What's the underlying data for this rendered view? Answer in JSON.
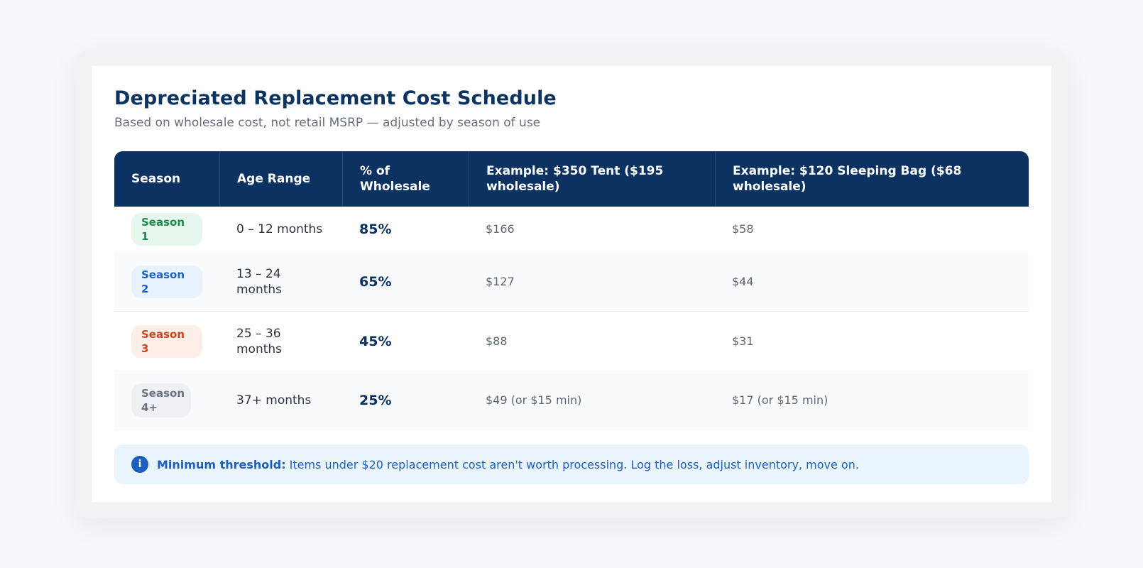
{
  "title": "Depreciated Replacement Cost Schedule",
  "subtitle": "Based on wholesale cost, not retail MSRP — adjusted by season of use",
  "table": {
    "headers": [
      "Season",
      "Age Range",
      "% of Wholesale",
      "Example: $350 Tent ($195 wholesale)",
      "Example: $120 Sleeping Bag ($68 wholesale)"
    ],
    "rows": [
      {
        "season": "Season 1",
        "age": "0 – 12 months",
        "pct": "85%",
        "tent": "$166",
        "bag": "$58",
        "badge_color": "#1c8a4c"
      },
      {
        "season": "Season 2",
        "age": "13 – 24 months",
        "pct": "65%",
        "tent": "$127",
        "bag": "$44",
        "badge_color": "#1d63c4"
      },
      {
        "season": "Season 3",
        "age": "25 – 36 months",
        "pct": "45%",
        "tent": "$88",
        "bag": "$31",
        "badge_color": "#c8461d"
      },
      {
        "season": "Season 4+",
        "age": "37+ months",
        "pct": "25%",
        "tent": "$49 (or $15 min)",
        "bag": "$17 (or $15 min)",
        "badge_color": "#6a7280"
      }
    ]
  },
  "note": {
    "icon": "info-icon",
    "icon_glyph": "i",
    "label": "Minimum threshold:",
    "text": "Items under $20 replacement cost aren't worth processing. Log the loss, adjust inventory, move on."
  },
  "colors": {
    "header_bg": "#0b3261",
    "title": "#0d3461",
    "note_bg": "#eaf4fd",
    "note_text": "#1d5fc1"
  }
}
